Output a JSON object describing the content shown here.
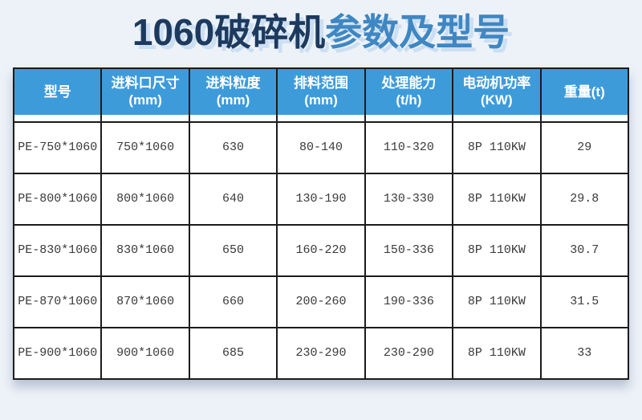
{
  "chart_data": {
    "type": "table",
    "title": "1060破碎机参数及型号",
    "title_part_dark": "1060破碎机",
    "title_part_blue": "参数及型号",
    "columns": [
      {
        "label": "型号",
        "sub": ""
      },
      {
        "label": "进料口尺寸",
        "sub": "(mm)"
      },
      {
        "label": "进料粒度",
        "sub": "(mm)"
      },
      {
        "label": "排料范围",
        "sub": "(mm)"
      },
      {
        "label": "处理能力",
        "sub": "(t/h)"
      },
      {
        "label": "电动机功率",
        "sub": "(KW)"
      },
      {
        "label": "重量(t)",
        "sub": ""
      }
    ],
    "rows": [
      [
        "PE-750*1060",
        "750*1060",
        "630",
        "80-140",
        "110-320",
        "8P 110KW",
        "29"
      ],
      [
        "PE-800*1060",
        "800*1060",
        "640",
        "130-190",
        "130-330",
        "8P 110KW",
        "29.8"
      ],
      [
        "PE-830*1060",
        "830*1060",
        "650",
        "160-220",
        "150-336",
        "8P 110KW",
        "30.7"
      ],
      [
        "PE-870*1060",
        "870*1060",
        "660",
        "200-260",
        "190-336",
        "8P 110KW",
        "31.5"
      ],
      [
        "PE-900*1060",
        "900*1060",
        "685",
        "230-290",
        "230-290",
        "8P 110KW",
        "33"
      ]
    ],
    "layout": {
      "legend": "none",
      "grid": "full-black-borders",
      "header_position": "top-row"
    }
  },
  "colors": {
    "page_bg": "#edf2f9",
    "header_bg": "#3e9bda",
    "header_text": "#ffffff",
    "border": "#1c1c1c",
    "title_dark": "#1d3a5e",
    "title_blue": "#3f87c2",
    "title_shadow": "#ccdff2",
    "cell_text": "#3a3a3a",
    "table_bg": "#ffffff"
  }
}
